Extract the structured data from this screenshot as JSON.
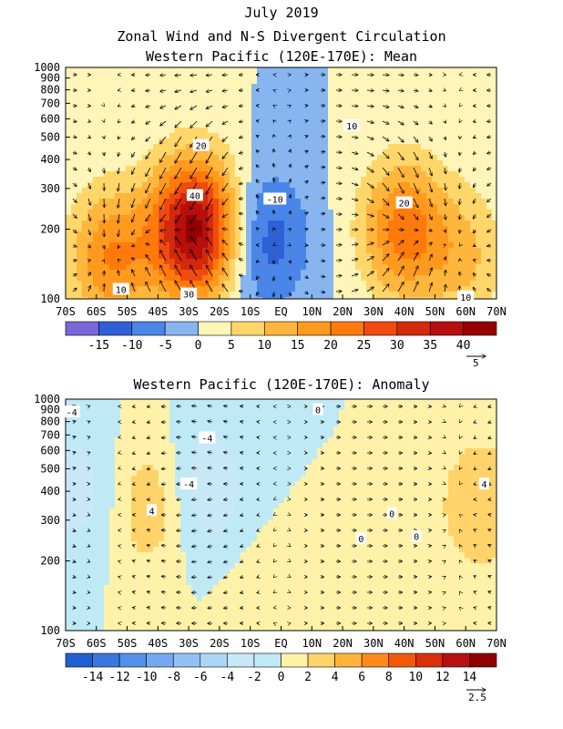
{
  "figure": {
    "title_line1": "July 2019",
    "title_line2": "Zonal Wind and N-S Divergent Circulation",
    "title_line3": "Western Pacific (120E-170E): Mean"
  },
  "chart_data": [
    {
      "type": "heatmap",
      "title": "Western Pacific (120E-170E): Mean",
      "x_ticks": [
        "70S",
        "60S",
        "50S",
        "40S",
        "30S",
        "20S",
        "10S",
        "EQ",
        "10N",
        "20N",
        "30N",
        "40N",
        "50N",
        "60N",
        "70N"
      ],
      "y_ticks": [
        "100",
        "200",
        "300",
        "400",
        "500",
        "600",
        "700",
        "800",
        "900",
        "1000"
      ],
      "x_range": [
        -70,
        70
      ],
      "y_range": [
        1000,
        100
      ],
      "y_scale": "log",
      "colorbar_labels": [
        "-15",
        "-10",
        "-5",
        "0",
        "5",
        "10",
        "15",
        "20",
        "25",
        "30",
        "35",
        "40"
      ],
      "colorbar_levels": [
        -20,
        -15,
        -10,
        -5,
        0,
        5,
        10,
        15,
        20,
        25,
        30,
        35,
        40,
        45
      ],
      "colorbar_colors": [
        "#7b68d8",
        "#2f60d6",
        "#4a86e8",
        "#87b5f0",
        "#fff5b8",
        "#ffd66a",
        "#ffb63c",
        "#ff9a1e",
        "#ff7a0a",
        "#f04a10",
        "#d22a0a",
        "#b80e0e",
        "#960000"
      ],
      "contour_labels": [
        "30",
        "40",
        "20",
        "10",
        "-10",
        "10",
        "20",
        "10"
      ],
      "vector_scale_label": "5",
      "field_centers": [
        {
          "lat": -28,
          "p": 200,
          "value": 42
        },
        {
          "lat": -55,
          "p": 150,
          "value": 20
        },
        {
          "lat": -5,
          "p": 180,
          "value": -13
        },
        {
          "lat": 40,
          "p": 200,
          "value": 22
        },
        {
          "lat": 60,
          "p": 150,
          "value": 10
        }
      ]
    },
    {
      "type": "heatmap",
      "title": "Western Pacific (120E-170E): Anomaly",
      "x_ticks": [
        "70S",
        "60S",
        "50S",
        "40S",
        "30S",
        "20S",
        "10S",
        "EQ",
        "10N",
        "20N",
        "30N",
        "40N",
        "50N",
        "60N",
        "70N"
      ],
      "y_ticks": [
        "100",
        "200",
        "300",
        "400",
        "500",
        "600",
        "700",
        "800",
        "900",
        "1000"
      ],
      "x_range": [
        -70,
        70
      ],
      "y_range": [
        1000,
        100
      ],
      "y_scale": "log",
      "colorbar_labels": [
        "-14",
        "-12",
        "-10",
        "-8",
        "-6",
        "-4",
        "-2",
        "0",
        "2",
        "4",
        "6",
        "8",
        "10",
        "12",
        "14"
      ],
      "colorbar_levels": [
        -16,
        -14,
        -12,
        -10,
        -8,
        -6,
        -4,
        -2,
        0,
        2,
        4,
        6,
        8,
        10,
        12,
        14,
        16
      ],
      "colorbar_colors": [
        "#1f5fd0",
        "#3a77e0",
        "#5590ea",
        "#74a9f0",
        "#93c0f3",
        "#add6f6",
        "#c8e8f8",
        "#bfeaf5",
        "#fff2a8",
        "#ffd36a",
        "#ffb33a",
        "#ff8a1a",
        "#f05a0a",
        "#d8300a",
        "#b81010",
        "#900000"
      ],
      "contour_labels": [
        "4",
        "-4",
        "-4",
        "-4",
        "0",
        "0",
        "4",
        "0",
        "0"
      ],
      "vector_scale_label": "2.5",
      "field_centers": [
        {
          "lat": -42,
          "p": 350,
          "value": 4
        },
        {
          "lat": -65,
          "p": 400,
          "value": -3
        },
        {
          "lat": -25,
          "p": 400,
          "value": -4
        },
        {
          "lat": 65,
          "p": 350,
          "value": 4
        },
        {
          "lat": -5,
          "p": 120,
          "value": 2
        }
      ]
    }
  ]
}
